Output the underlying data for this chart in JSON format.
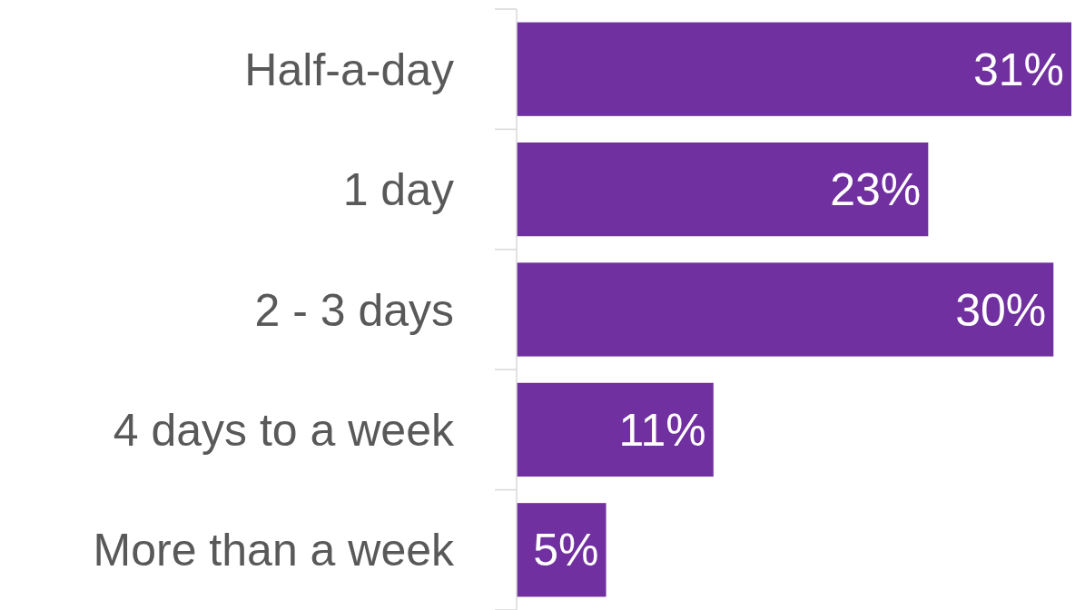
{
  "chart_data": {
    "type": "bar",
    "orientation": "horizontal",
    "categories": [
      "Half-a-day",
      "1 day",
      "2 - 3 days",
      "4 days to a week",
      "More than a week"
    ],
    "values": [
      31,
      23,
      30,
      11,
      5
    ],
    "value_labels": [
      "31%",
      "23%",
      "30%",
      "11%",
      "5%"
    ],
    "color": "#7030a0"
  }
}
